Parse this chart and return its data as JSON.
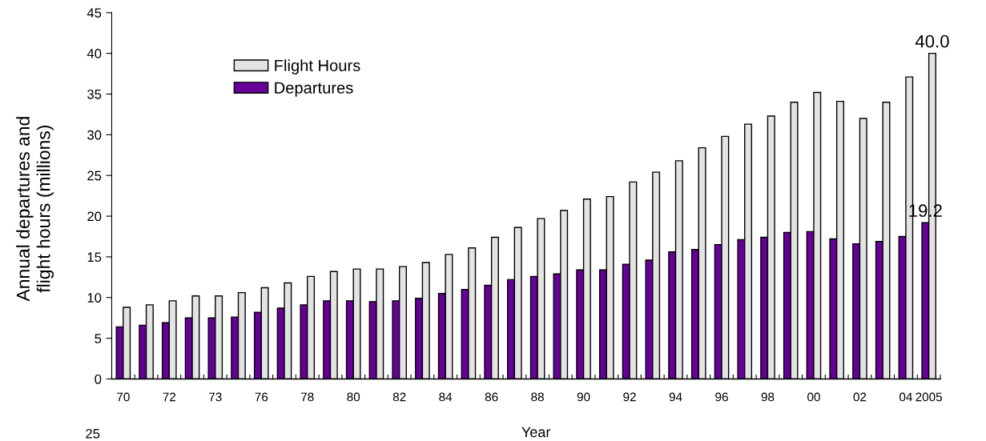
{
  "chart_data": {
    "type": "bar",
    "xlabel": "Year",
    "ylabel": "Annual departures and\nflight hours (millions)",
    "categories": [
      "70",
      null,
      "72",
      null,
      "73",
      null,
      "76",
      null,
      "78",
      null,
      "80",
      null,
      "82",
      null,
      "84",
      null,
      "86",
      null,
      "88",
      null,
      "90",
      null,
      "92",
      null,
      "94",
      null,
      "96",
      null,
      "98",
      null,
      "00",
      null,
      "02",
      null,
      "04",
      "2005"
    ],
    "series": [
      {
        "name": "Departures",
        "color": "#660099",
        "values": [
          6.4,
          6.6,
          6.9,
          7.5,
          7.5,
          7.6,
          8.2,
          8.7,
          9.1,
          9.6,
          9.6,
          9.5,
          9.6,
          9.9,
          10.5,
          11.0,
          11.5,
          12.2,
          12.6,
          12.9,
          13.4,
          13.4,
          14.1,
          14.6,
          15.6,
          15.9,
          16.5,
          17.1,
          17.4,
          18.0,
          18.1,
          17.2,
          16.6,
          16.9,
          17.5,
          19.2
        ],
        "value_labels": [
          null,
          null,
          null,
          null,
          null,
          null,
          null,
          null,
          null,
          null,
          null,
          null,
          null,
          null,
          null,
          null,
          null,
          null,
          null,
          null,
          null,
          null,
          null,
          null,
          null,
          null,
          null,
          null,
          null,
          null,
          null,
          null,
          null,
          null,
          null,
          "19.2"
        ]
      },
      {
        "name": "Flight Hours",
        "color": "#e3e3e3",
        "values": [
          8.8,
          9.1,
          9.6,
          10.2,
          10.2,
          10.6,
          11.2,
          11.8,
          12.6,
          13.2,
          13.5,
          13.5,
          13.8,
          14.3,
          15.3,
          16.1,
          17.4,
          18.6,
          19.7,
          20.7,
          22.1,
          22.4,
          24.2,
          25.4,
          26.8,
          28.4,
          29.8,
          31.3,
          32.3,
          34.0,
          35.2,
          34.1,
          32.0,
          34.0,
          37.1,
          40.0
        ],
        "value_labels": [
          null,
          null,
          null,
          null,
          null,
          null,
          null,
          null,
          null,
          null,
          null,
          null,
          null,
          null,
          null,
          null,
          null,
          null,
          null,
          null,
          null,
          null,
          null,
          null,
          null,
          null,
          null,
          null,
          null,
          null,
          null,
          null,
          null,
          null,
          null,
          "40.0"
        ]
      }
    ],
    "ylim": [
      0,
      45
    ],
    "yticks": [
      0,
      5,
      10,
      15,
      20,
      25,
      30,
      35,
      40,
      45
    ],
    "legend": "top left",
    "annotations": [
      "25"
    ]
  }
}
